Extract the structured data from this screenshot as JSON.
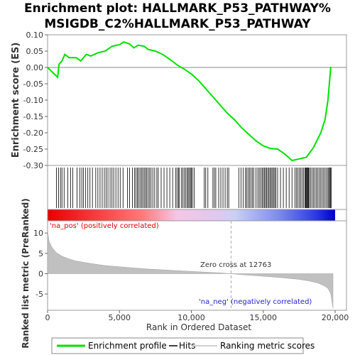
{
  "chart_data": {
    "type": "line",
    "title_line1": "Enrichment plot: HALLMARK_P53_PATHWAY%",
    "title_line2": "MSIGDB_C2%HALLMARK_P53_PATHWAY",
    "top_panel": {
      "ylabel": "Enrichment score (ES)",
      "ylim": [
        -0.3,
        0.1
      ],
      "yticks": [
        "0.10",
        "0.05",
        "0.00",
        "-0.05",
        "-0.10",
        "-0.15",
        "-0.20",
        "-0.25",
        "-0.30"
      ],
      "series_name": "Enrichment profile",
      "line_color": "#00e000",
      "x": [
        0,
        700,
        800,
        1000,
        1200,
        1500,
        2000,
        2300,
        2700,
        3000,
        3500,
        4000,
        4500,
        5000,
        5300,
        5700,
        6000,
        6300,
        6700,
        7000,
        7500,
        8000,
        8500,
        9000,
        9500,
        10000,
        10500,
        11000,
        11500,
        12000,
        12500,
        13000,
        13500,
        14000,
        14500,
        15000,
        15500,
        16000,
        16500,
        17000,
        17500,
        18000,
        18500,
        19000,
        19300,
        19500,
        19700
      ],
      "y": [
        0.0,
        -0.03,
        0.01,
        0.02,
        0.04,
        0.03,
        0.03,
        0.02,
        0.04,
        0.035,
        0.045,
        0.05,
        0.065,
        0.07,
        0.078,
        0.072,
        0.06,
        0.068,
        0.065,
        0.055,
        0.05,
        0.04,
        0.025,
        0.008,
        -0.005,
        -0.02,
        -0.04,
        -0.065,
        -0.09,
        -0.115,
        -0.14,
        -0.16,
        -0.185,
        -0.205,
        -0.225,
        -0.24,
        -0.248,
        -0.25,
        -0.265,
        -0.285,
        -0.28,
        -0.275,
        -0.245,
        -0.2,
        -0.16,
        -0.1,
        0.002
      ]
    },
    "hits_panel": {
      "series_name": "Hits",
      "hit_ranks": [
        620,
        760,
        900,
        1000,
        1150,
        1400,
        1600,
        1750,
        2050,
        2250,
        2380,
        2500,
        2650,
        2800,
        2950,
        3120,
        3350,
        3500,
        3650,
        3800,
        3950,
        4080,
        4200,
        4350,
        4480,
        4600,
        4750,
        4900,
        5050,
        5250,
        5550,
        5700,
        5900,
        6050,
        6150,
        6250,
        6330,
        6430,
        6530,
        6620,
        6720,
        6810,
        6900,
        7000,
        7100,
        7200,
        7320,
        7450,
        7600,
        7700,
        7900,
        8100,
        8300,
        8500,
        8700,
        8900,
        9000,
        9100,
        9150,
        9300,
        9400,
        9500,
        9600,
        9700,
        9780,
        9860,
        9940,
        10000,
        10080,
        10200,
        10900,
        11000,
        11150,
        11500,
        11600,
        11700,
        11900,
        12050,
        12200,
        12350,
        12500,
        12600,
        13300,
        13450,
        13600,
        13750,
        13850,
        13950,
        14050,
        14150,
        14250,
        14350,
        14500,
        14620,
        14720,
        14820,
        14920,
        15000,
        15080,
        15160,
        15240,
        15320,
        15400,
        15480,
        15560,
        15640,
        15720,
        15800,
        15880,
        16000,
        16200,
        16400,
        16600,
        16800,
        17000,
        17200,
        17300,
        17400,
        17500,
        17600,
        17700,
        17800,
        17900,
        17950,
        18000,
        18050,
        18100,
        18150,
        18200,
        18300,
        18400,
        18500,
        18600,
        18700,
        18800,
        18900,
        19000,
        19100,
        19200,
        19300,
        19400,
        19500,
        19560,
        19620,
        19680,
        19740
      ]
    },
    "rank_panel": {
      "ylabel": "Ranked list metric (PreRanked)",
      "xlabel": "Rank in Ordered Dataset",
      "ylim": [
        -9,
        13
      ],
      "yticks": [
        "10",
        "5",
        "0",
        "-5"
      ],
      "xticks": [
        "0",
        "5,000",
        "10,000",
        "15,000",
        "20,000"
      ],
      "series_name": "Ranking metric scores",
      "x": [
        0,
        100,
        300,
        600,
        1000,
        1500,
        2000,
        3000,
        4000,
        5000,
        6000,
        7000,
        8000,
        9000,
        10000,
        11000,
        12000,
        12763,
        13500,
        14500,
        15500,
        16500,
        17500,
        18200,
        18800,
        19200,
        19500,
        19700,
        19850
      ],
      "y": [
        10.5,
        8.0,
        6.5,
        5.2,
        4.3,
        3.6,
        3.1,
        2.5,
        2.0,
        1.7,
        1.4,
        1.15,
        0.95,
        0.75,
        0.55,
        0.38,
        0.2,
        0.0,
        -0.25,
        -0.5,
        -0.75,
        -1.05,
        -1.4,
        -1.8,
        -2.3,
        -2.9,
        -3.6,
        -5.0,
        -8.5
      ],
      "pos_label": "'na_pos' (positively correlated)",
      "neg_label": "'na_neg' (negatively correlated)",
      "zero_cross_label": "Zero cross at 12763",
      "zero_cross": 12763
    },
    "xlim": [
      0,
      20000
    ],
    "legend": {
      "placement": "bottom",
      "items": [
        "Enrichment profile",
        "Hits",
        "Ranking metric scores"
      ]
    },
    "colors": {
      "pos": "#ff0000",
      "neg": "#0000ff",
      "profile": "#00e000",
      "pos_label": "#dd0000",
      "neg_label": "#2222cc"
    }
  }
}
